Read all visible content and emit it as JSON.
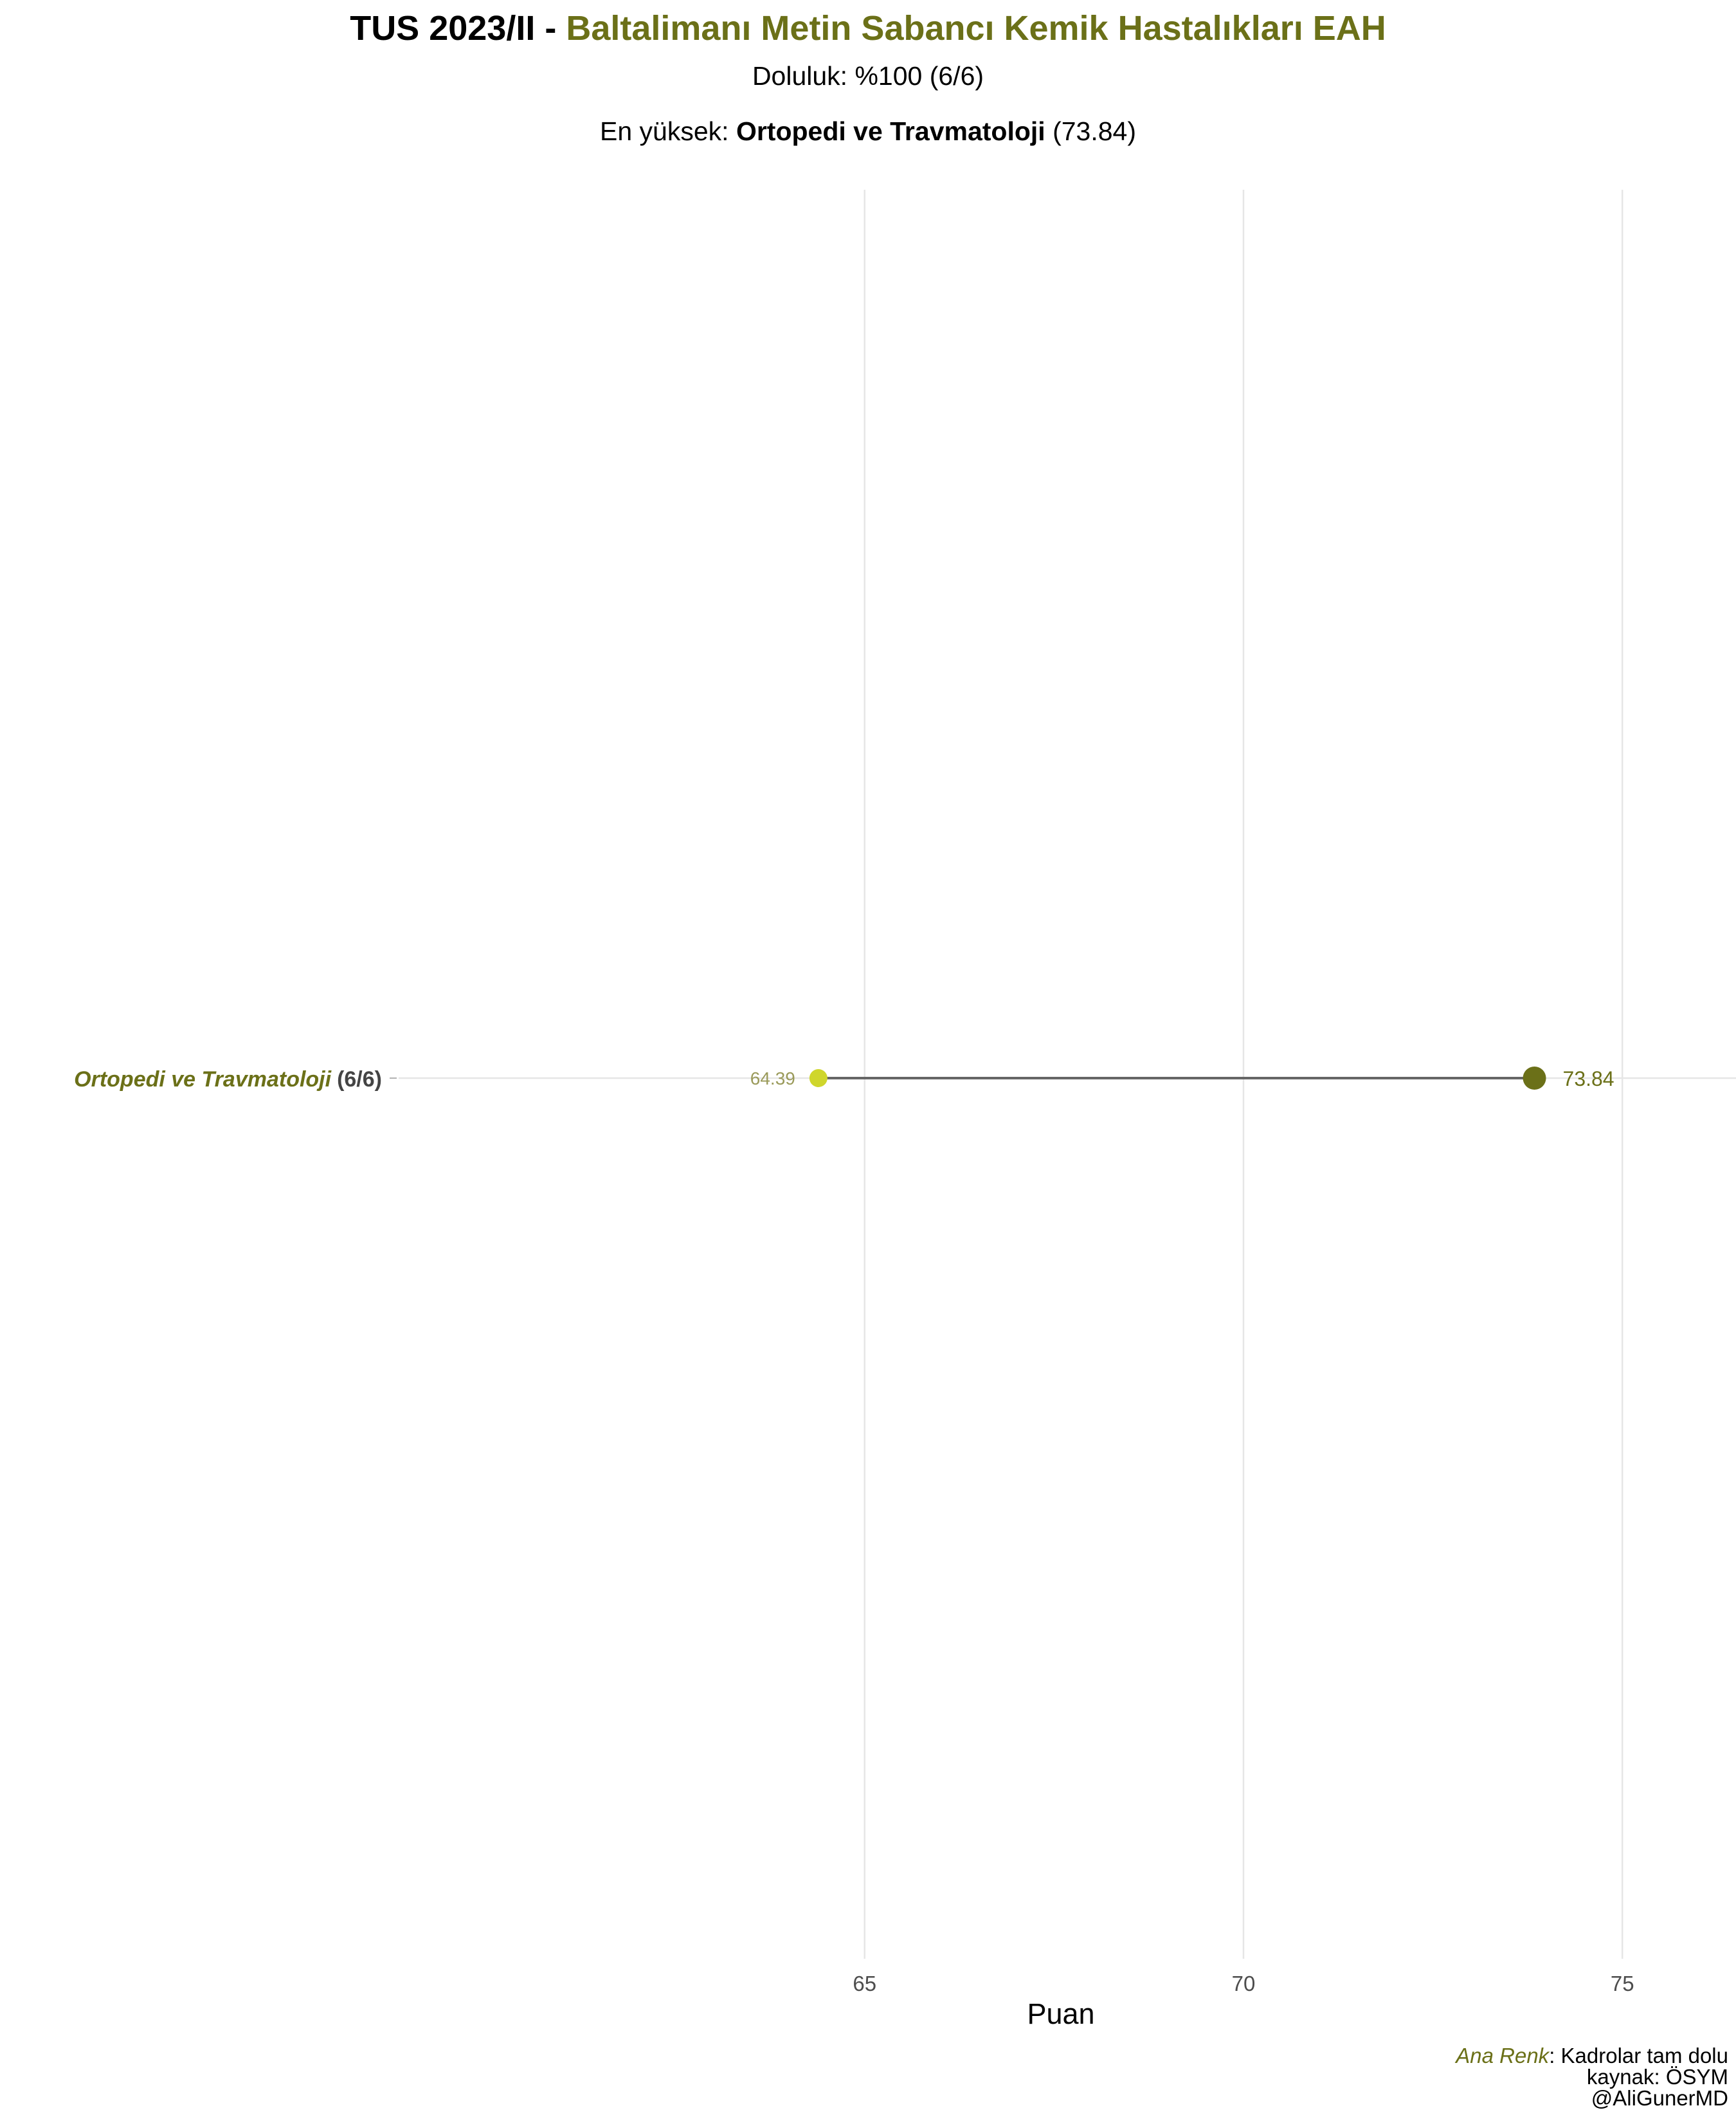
{
  "title": {
    "prefix": "TUS 2023/II - ",
    "institution": "Baltalimanı Metin Sabancı Kemik Hastalıkları EAH"
  },
  "subtitle": {
    "fill_label": "Doluluk: %100 (6/6)",
    "top_prefix": "En yüksek: ",
    "top_department": "Ortopedi ve Travmatoloji",
    "top_score": " (73.84)"
  },
  "colors": {
    "accent": "#6b7018",
    "min_point": "#cfd62c",
    "max_point": "#6b7018",
    "segment": "#666666",
    "grid": "#e6e6e6",
    "min_label": "#9a9a5a",
    "axis_text": "#4d4d4d",
    "count_text": "#444444"
  },
  "chart_data": {
    "type": "dumbbell",
    "xlabel": "Puan",
    "ylabel": "",
    "xlim": [
      58.85,
      76.5
    ],
    "xticks": [
      65,
      70,
      75
    ],
    "grid": true,
    "rows": [
      {
        "department": "Ortopedi ve Travmatoloji",
        "count": "(6/6)",
        "min": 64.39,
        "max": 73.84,
        "min_label": "64.39",
        "max_label": "73.84"
      }
    ]
  },
  "caption": {
    "legend_key": "Ana Renk",
    "legend_text": ": Kadrolar tam dolu",
    "source": "kaynak: ÖSYM",
    "author": "@AliGunerMD"
  }
}
